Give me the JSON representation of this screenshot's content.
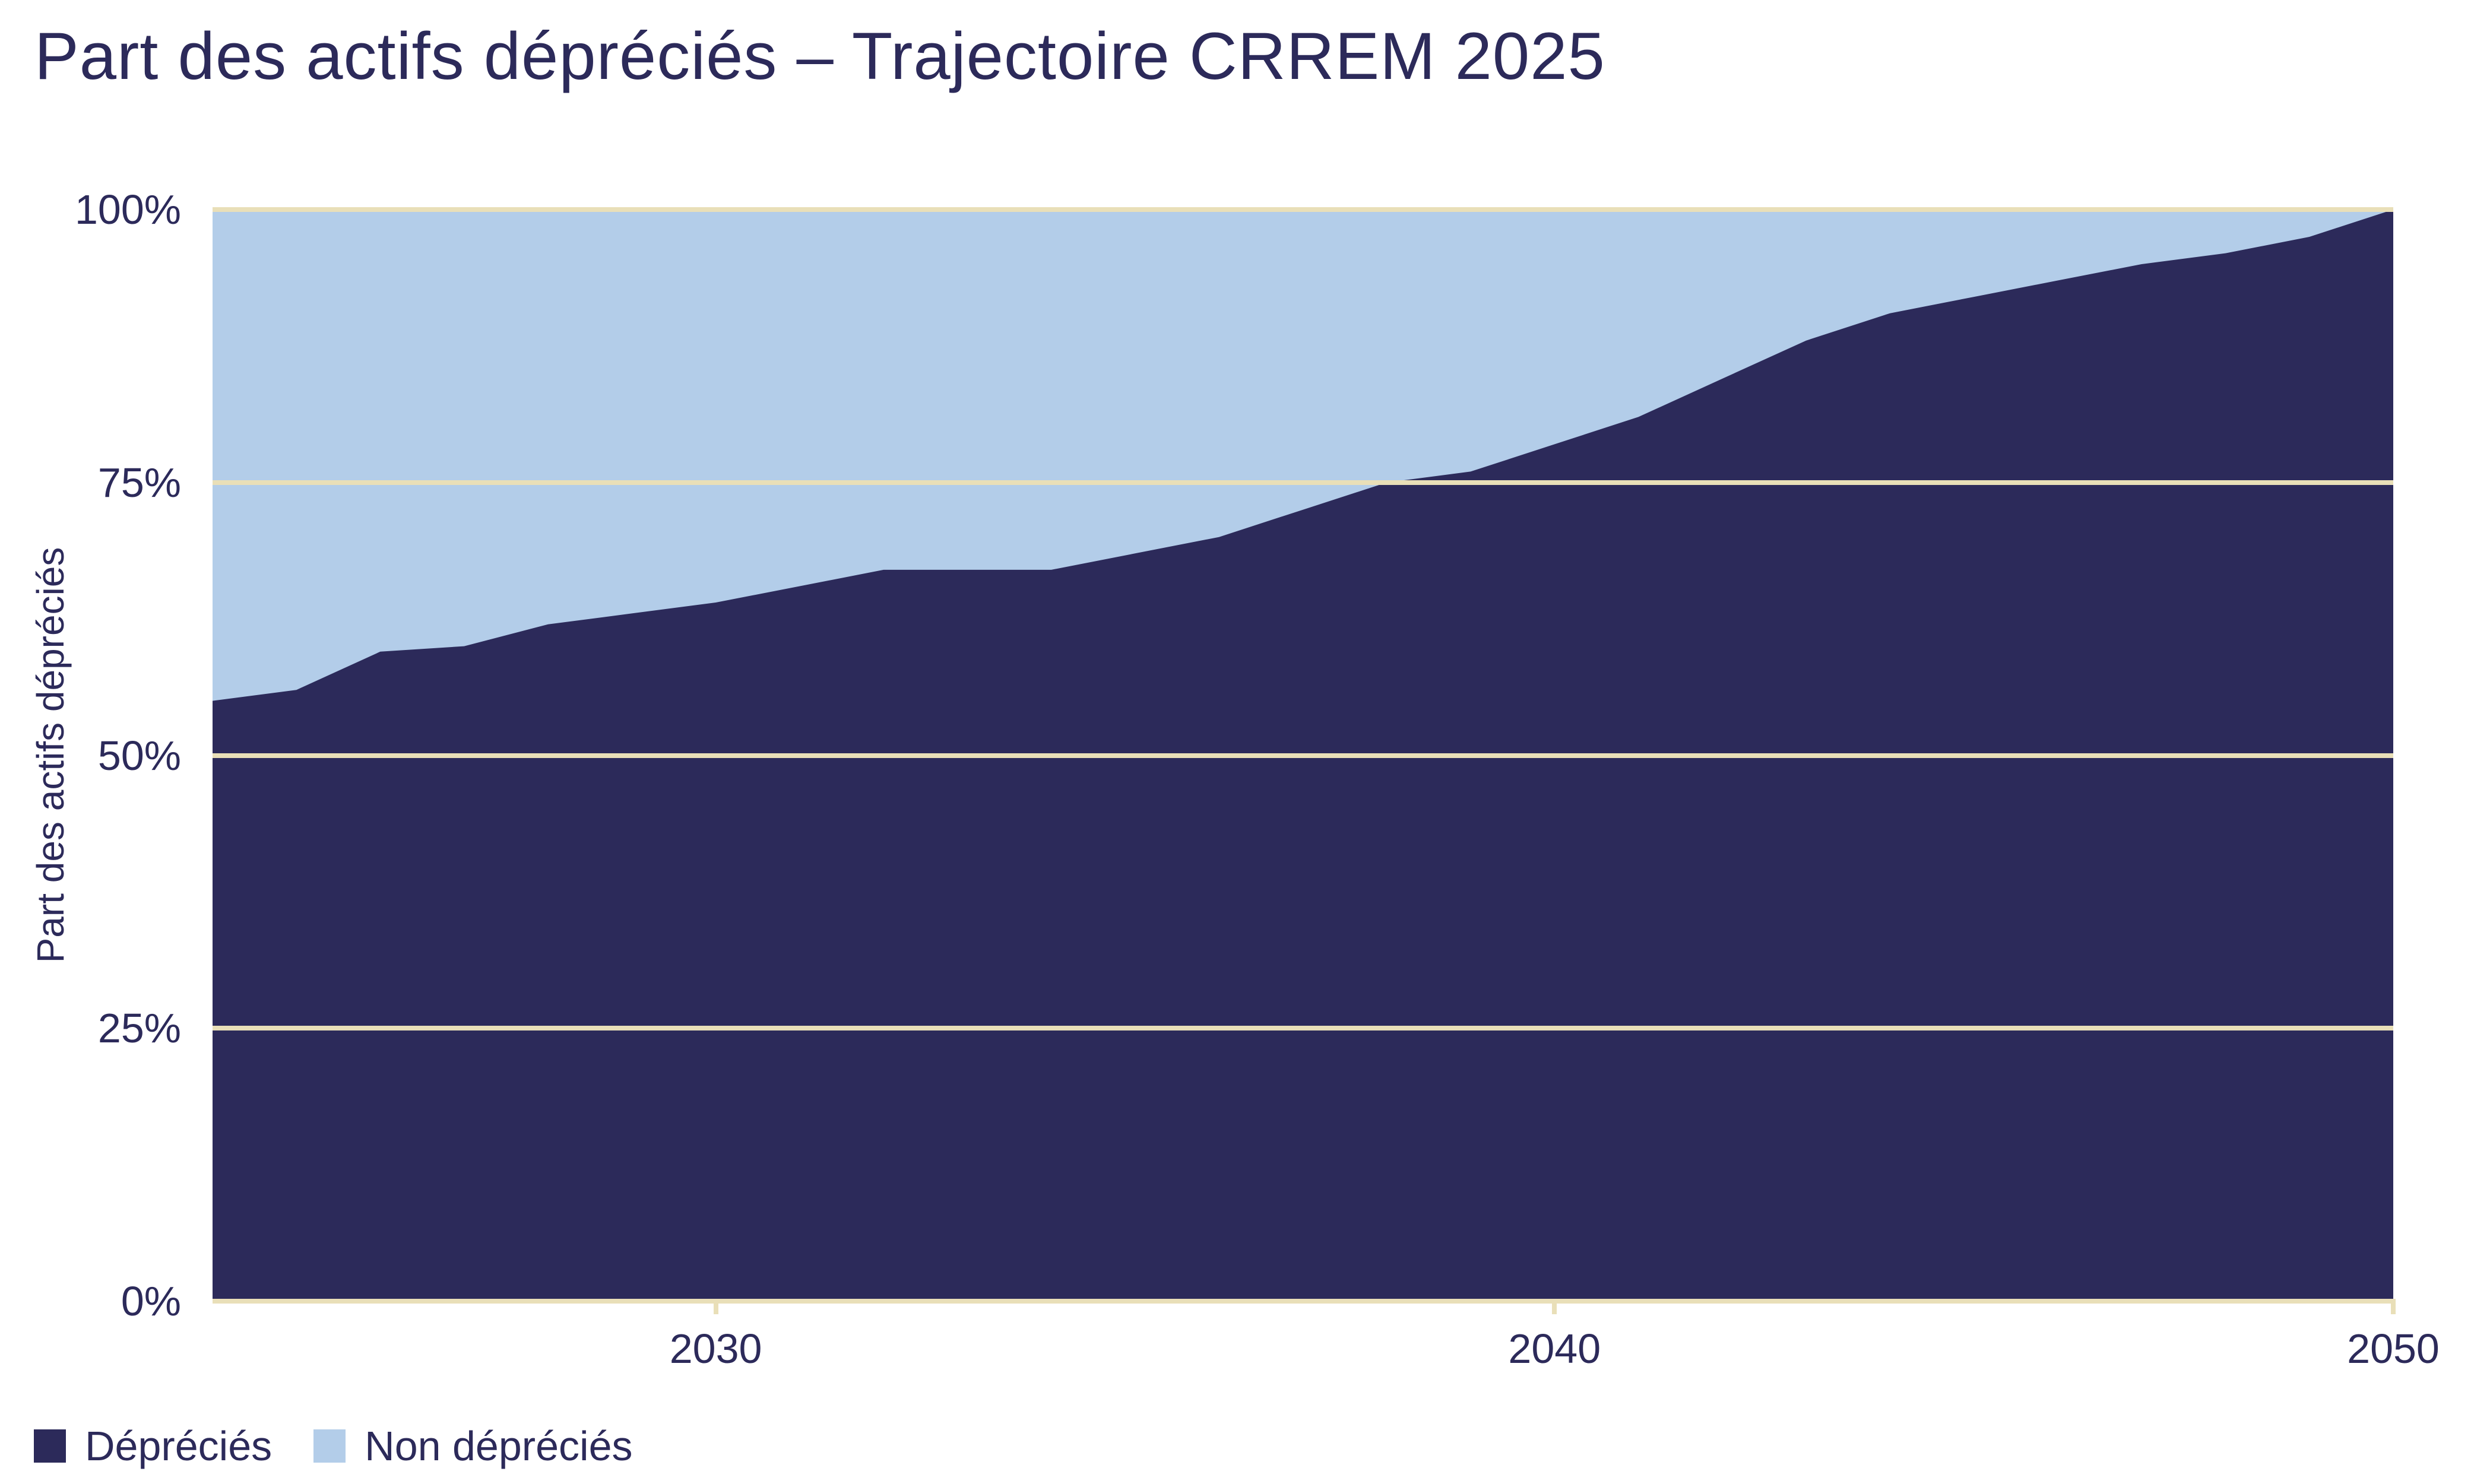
{
  "title": "Part des actifs dépréciés – Trajectoire CRREM 2025",
  "y_axis": {
    "title": "Part des actifs dépréciés",
    "ticks": [
      {
        "value": 0,
        "label": "0%"
      },
      {
        "value": 25,
        "label": "25%"
      },
      {
        "value": 50,
        "label": "50%"
      },
      {
        "value": 75,
        "label": "75%"
      },
      {
        "value": 100,
        "label": "100%"
      }
    ]
  },
  "x_axis": {
    "range_start": 2024,
    "range_end": 2050,
    "ticks": [
      {
        "value": 2030,
        "label": "2030"
      },
      {
        "value": 2040,
        "label": "2040"
      },
      {
        "value": 2050,
        "label": "2050"
      }
    ]
  },
  "legend": {
    "items": [
      {
        "label": "Dépréciés",
        "color_key": "depreciated"
      },
      {
        "label": "Non dépréciés",
        "color_key": "non_depreciated"
      }
    ]
  },
  "colors": {
    "depreciated": "#2c2a5a",
    "non_depreciated": "#b3cde9",
    "gridline": "#e9dfb8",
    "text": "#2c2a5a",
    "background": "#ffffff"
  },
  "chart_data": {
    "type": "area",
    "stacked": true,
    "title": "Part des actifs dépréciés – Trajectoire CRREM 2025",
    "xlabel": "",
    "ylabel": "Part des actifs dépréciés",
    "ylim": [
      0,
      100
    ],
    "xlim": [
      2024,
      2050
    ],
    "y_ticks": [
      0,
      25,
      50,
      75,
      100
    ],
    "x_ticks": [
      2030,
      2040,
      2050
    ],
    "grid": "horizontal",
    "legend_position": "bottom-left",
    "x": [
      2024,
      2025,
      2026,
      2027,
      2028,
      2029,
      2030,
      2031,
      2032,
      2033,
      2034,
      2035,
      2036,
      2037,
      2038,
      2039,
      2040,
      2041,
      2042,
      2043,
      2044,
      2045,
      2046,
      2047,
      2048,
      2049,
      2050
    ],
    "series": [
      {
        "name": "Dépréciés",
        "values": [
          55,
          56,
          59.5,
          60,
          62,
          63,
          64,
          65.5,
          67,
          67,
          67,
          68.5,
          70,
          72.5,
          75,
          76,
          78.5,
          81,
          84.5,
          88,
          90.5,
          92,
          93.5,
          95,
          96,
          97.5,
          100
        ]
      },
      {
        "name": "Non dépréciés",
        "values": [
          45,
          44,
          40.5,
          40,
          38,
          37,
          36,
          34.5,
          33,
          33,
          33,
          31.5,
          30,
          27.5,
          25,
          24,
          21.5,
          19,
          15.5,
          12,
          9.5,
          8,
          6.5,
          5,
          4,
          2.5,
          0
        ]
      }
    ]
  }
}
